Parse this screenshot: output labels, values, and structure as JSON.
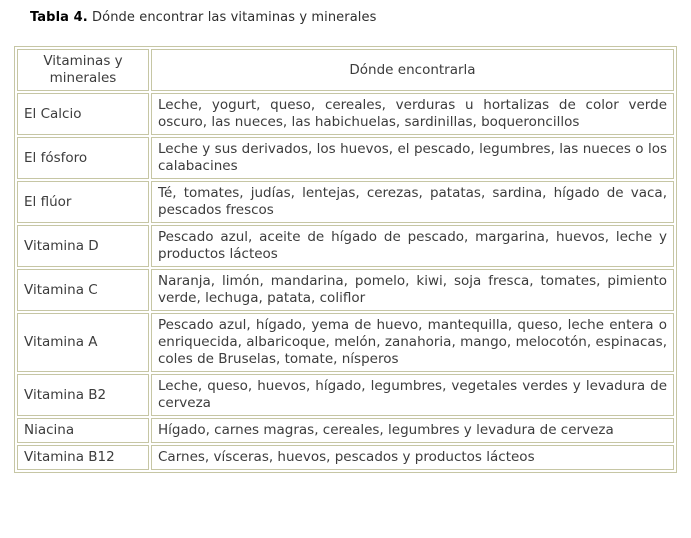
{
  "title": {
    "bold": "Tabla 4.",
    "rest": " Dónde encontrar las vitaminas y minerales"
  },
  "table": {
    "headers": {
      "col1": "Vitaminas y minerales",
      "col2": "Dónde encontrarla"
    },
    "rows": [
      {
        "name": "El Calcio",
        "where": "Leche, yogurt, queso, cereales, verduras u hortalizas de color verde oscuro, las nueces, las habichuelas, sardinillas, boqueroncillos"
      },
      {
        "name": "El fósforo",
        "where": "Leche y sus derivados, los huevos, el pescado, legumbres, las nueces o los calabacines"
      },
      {
        "name": "El flúor",
        "where": "Té, tomates, judías, lentejas, cerezas, patatas,  sardina, hígado de vaca, pescados frescos"
      },
      {
        "name": "Vitamina D",
        "where": "Pescado azul, aceite de hígado de pescado, margarina, huevos, leche y productos lácteos"
      },
      {
        "name": "Vitamina C",
        "where": "Naranja, limón, mandarina, pomelo, kiwi, soja fresca, tomates, pimiento verde, lechuga, patata, coliflor"
      },
      {
        "name": "Vitamina A",
        "where": "Pescado azul, hígado, yema de huevo, mantequilla, queso, leche entera o enriquecida, albaricoque, melón, zanahoria, mango, melocotón, espinacas, coles de Bruselas, tomate, nísperos"
      },
      {
        "name": "Vitamina B2",
        "where": "Leche, queso, huevos, hígado, legumbres, vegetales verdes y levadura de cerveza"
      },
      {
        "name": "Niacina",
        "where": "Hígado, carnes magras, cereales, legumbres y levadura de cerveza"
      },
      {
        "name": "Vitamina B12",
        "where": "Carnes, vísceras, huevos, pescados y productos lácteos"
      }
    ]
  },
  "colors": {
    "border": "#c6c6a4",
    "text": "#3c3c3c",
    "background": "#ffffff"
  }
}
